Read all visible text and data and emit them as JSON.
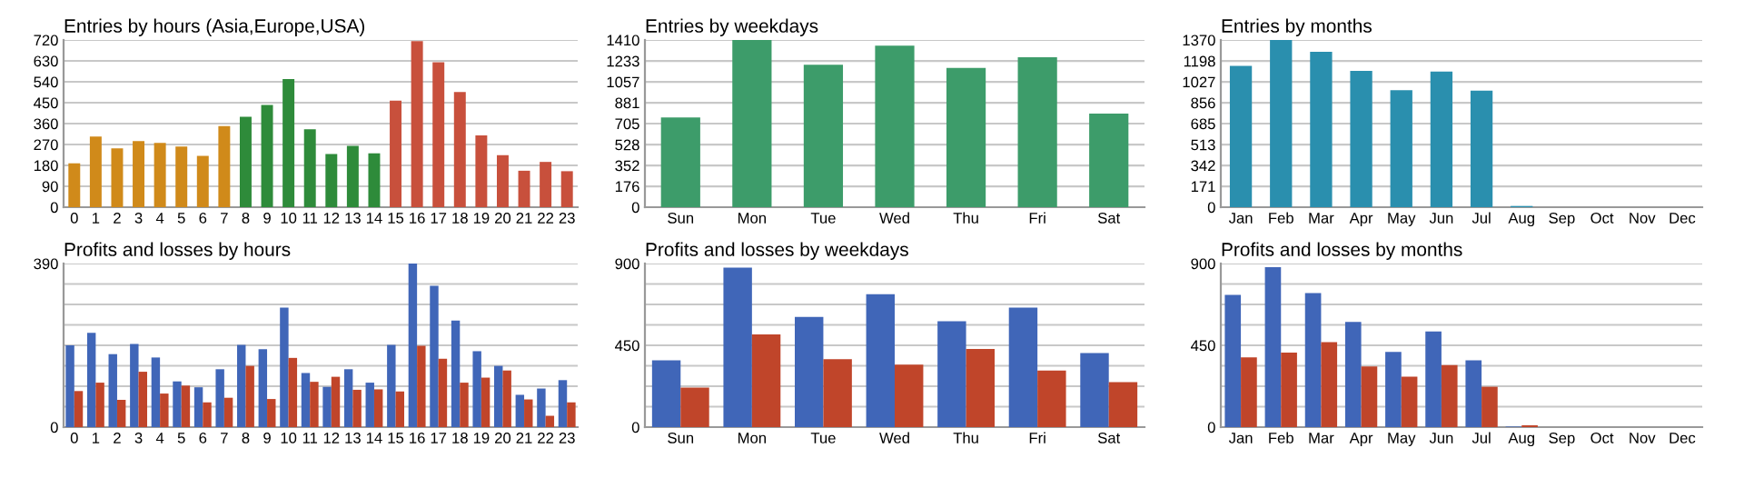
{
  "chart_data": [
    {
      "type": "bar",
      "title": "Entries by hours (Asia,Europe,USA)",
      "categories": [
        "0",
        "1",
        "2",
        "3",
        "4",
        "5",
        "6",
        "7",
        "8",
        "9",
        "10",
        "11",
        "12",
        "13",
        "14",
        "15",
        "16",
        "17",
        "18",
        "19",
        "20",
        "21",
        "22",
        "23"
      ],
      "values": [
        189,
        304,
        253,
        285,
        277,
        261,
        221,
        349,
        389,
        440,
        552,
        336,
        229,
        264,
        232,
        459,
        715,
        624,
        496,
        309,
        224,
        157,
        195,
        155
      ],
      "colors": [
        "#d08a1a",
        "#d08a1a",
        "#d08a1a",
        "#d08a1a",
        "#d08a1a",
        "#d08a1a",
        "#d08a1a",
        "#d08a1a",
        "#2e8b3a",
        "#2e8b3a",
        "#2e8b3a",
        "#2e8b3a",
        "#2e8b3a",
        "#2e8b3a",
        "#2e8b3a",
        "#c8503c",
        "#c8503c",
        "#c8503c",
        "#c8503c",
        "#c8503c",
        "#c8503c",
        "#c8503c",
        "#c8503c",
        "#c8503c"
      ],
      "ylim": [
        0,
        720
      ],
      "yticks": [
        0,
        90,
        180,
        270,
        360,
        450,
        540,
        630,
        720
      ],
      "grid": "y"
    },
    {
      "type": "bar",
      "title": "Entries by weekdays",
      "categories": [
        "Sun",
        "Mon",
        "Tue",
        "Wed",
        "Thu",
        "Fri",
        "Sat"
      ],
      "values": [
        757,
        1410,
        1201,
        1363,
        1175,
        1264,
        789
      ],
      "colors": [
        "#3d9c6a",
        "#3d9c6a",
        "#3d9c6a",
        "#3d9c6a",
        "#3d9c6a",
        "#3d9c6a",
        "#3d9c6a"
      ],
      "ylim": [
        0,
        1410
      ],
      "yticks": [
        0,
        176,
        352,
        528,
        705,
        881,
        1057,
        1233,
        1410
      ],
      "grid": "y"
    },
    {
      "type": "bar",
      "title": "Entries by months",
      "categories": [
        "Jan",
        "Feb",
        "Mar",
        "Apr",
        "May",
        "Jun",
        "Jul",
        "Aug",
        "Sep",
        "Oct",
        "Nov",
        "Dec"
      ],
      "values": [
        1157,
        1370,
        1274,
        1116,
        959,
        1111,
        954,
        10,
        0,
        0,
        0,
        0
      ],
      "colors": [
        "#2a8fae",
        "#2a8fae",
        "#2a8fae",
        "#2a8fae",
        "#2a8fae",
        "#2a8fae",
        "#2a8fae",
        "#2a8fae",
        "#2a8fae",
        "#2a8fae",
        "#2a8fae",
        "#2a8fae"
      ],
      "ylim": [
        0,
        1370
      ],
      "yticks": [
        0,
        171,
        342,
        513,
        685,
        856,
        1027,
        1198,
        1370
      ],
      "grid": "y"
    },
    {
      "type": "bar",
      "title": "Profits and losses by hours",
      "categories": [
        "0",
        "1",
        "2",
        "3",
        "4",
        "5",
        "6",
        "7",
        "8",
        "9",
        "10",
        "11",
        "12",
        "13",
        "14",
        "15",
        "16",
        "17",
        "18",
        "19",
        "20",
        "21",
        "22",
        "23"
      ],
      "series": [
        {
          "color": "#4066b8",
          "values": [
            195,
            225,
            174,
            198,
            166,
            109,
            95,
            138,
            196,
            186,
            285,
            129,
            96,
            138,
            106,
            196,
            390,
            337,
            254,
            181,
            146,
            77,
            92,
            112
          ]
        },
        {
          "color": "#c0452a",
          "values": [
            86,
            106,
            65,
            132,
            80,
            99,
            59,
            70,
            146,
            67,
            165,
            108,
            120,
            89,
            90,
            85,
            194,
            163,
            106,
            118,
            135,
            66,
            27,
            59
          ]
        }
      ],
      "ylim": [
        0,
        390
      ],
      "yticks": [
        0,
        {
          "value": 48.75,
          "label": null
        },
        {
          "value": 97.5,
          "label": null
        },
        {
          "value": 146.25,
          "label": null
        },
        {
          "value": 195,
          "label": null
        },
        {
          "value": 243.75,
          "label": null
        },
        {
          "value": 292.5,
          "label": null
        },
        {
          "value": 341.25,
          "label": null
        },
        390
      ],
      "grid": "y"
    },
    {
      "type": "bar",
      "title": "Profits and losses by weekdays",
      "categories": [
        "Sun",
        "Mon",
        "Tue",
        "Wed",
        "Thu",
        "Fri",
        "Sat"
      ],
      "series": [
        {
          "color": "#4066b8",
          "values": [
            367,
            877,
            606,
            731,
            582,
            658,
            407
          ]
        },
        {
          "color": "#c0452a",
          "values": [
            218,
            510,
            374,
            344,
            430,
            311,
            248
          ]
        }
      ],
      "ylim": [
        0,
        900
      ],
      "yticks": [
        0,
        {
          "value": 112.5,
          "label": null
        },
        {
          "value": 225,
          "label": null
        },
        {
          "value": 337.5,
          "label": null
        },
        450,
        {
          "value": 562.5,
          "label": null
        },
        {
          "value": 675,
          "label": null
        },
        {
          "value": 787.5,
          "label": null
        },
        900
      ],
      "grid": "y"
    },
    {
      "type": "bar",
      "title": "Profits and losses by months",
      "categories": [
        "Jan",
        "Feb",
        "Mar",
        "Apr",
        "May",
        "Jun",
        "Jul",
        "Aug",
        "Sep",
        "Oct",
        "Nov",
        "Dec"
      ],
      "series": [
        {
          "color": "#4066b8",
          "values": [
            728,
            880,
            738,
            579,
            414,
            526,
            367,
            3,
            0,
            0,
            0,
            0
          ]
        },
        {
          "color": "#c0452a",
          "values": [
            384,
            410,
            467,
            334,
            278,
            341,
            222,
            10,
            0,
            0,
            0,
            0
          ]
        }
      ],
      "ylim": [
        0,
        900
      ],
      "yticks": [
        0,
        {
          "value": 112.5,
          "label": null
        },
        {
          "value": 225,
          "label": null
        },
        {
          "value": 337.5,
          "label": null
        },
        450,
        {
          "value": 562.5,
          "label": null
        },
        {
          "value": 675,
          "label": null
        },
        {
          "value": 787.5,
          "label": null
        },
        900
      ],
      "grid": "y"
    }
  ]
}
